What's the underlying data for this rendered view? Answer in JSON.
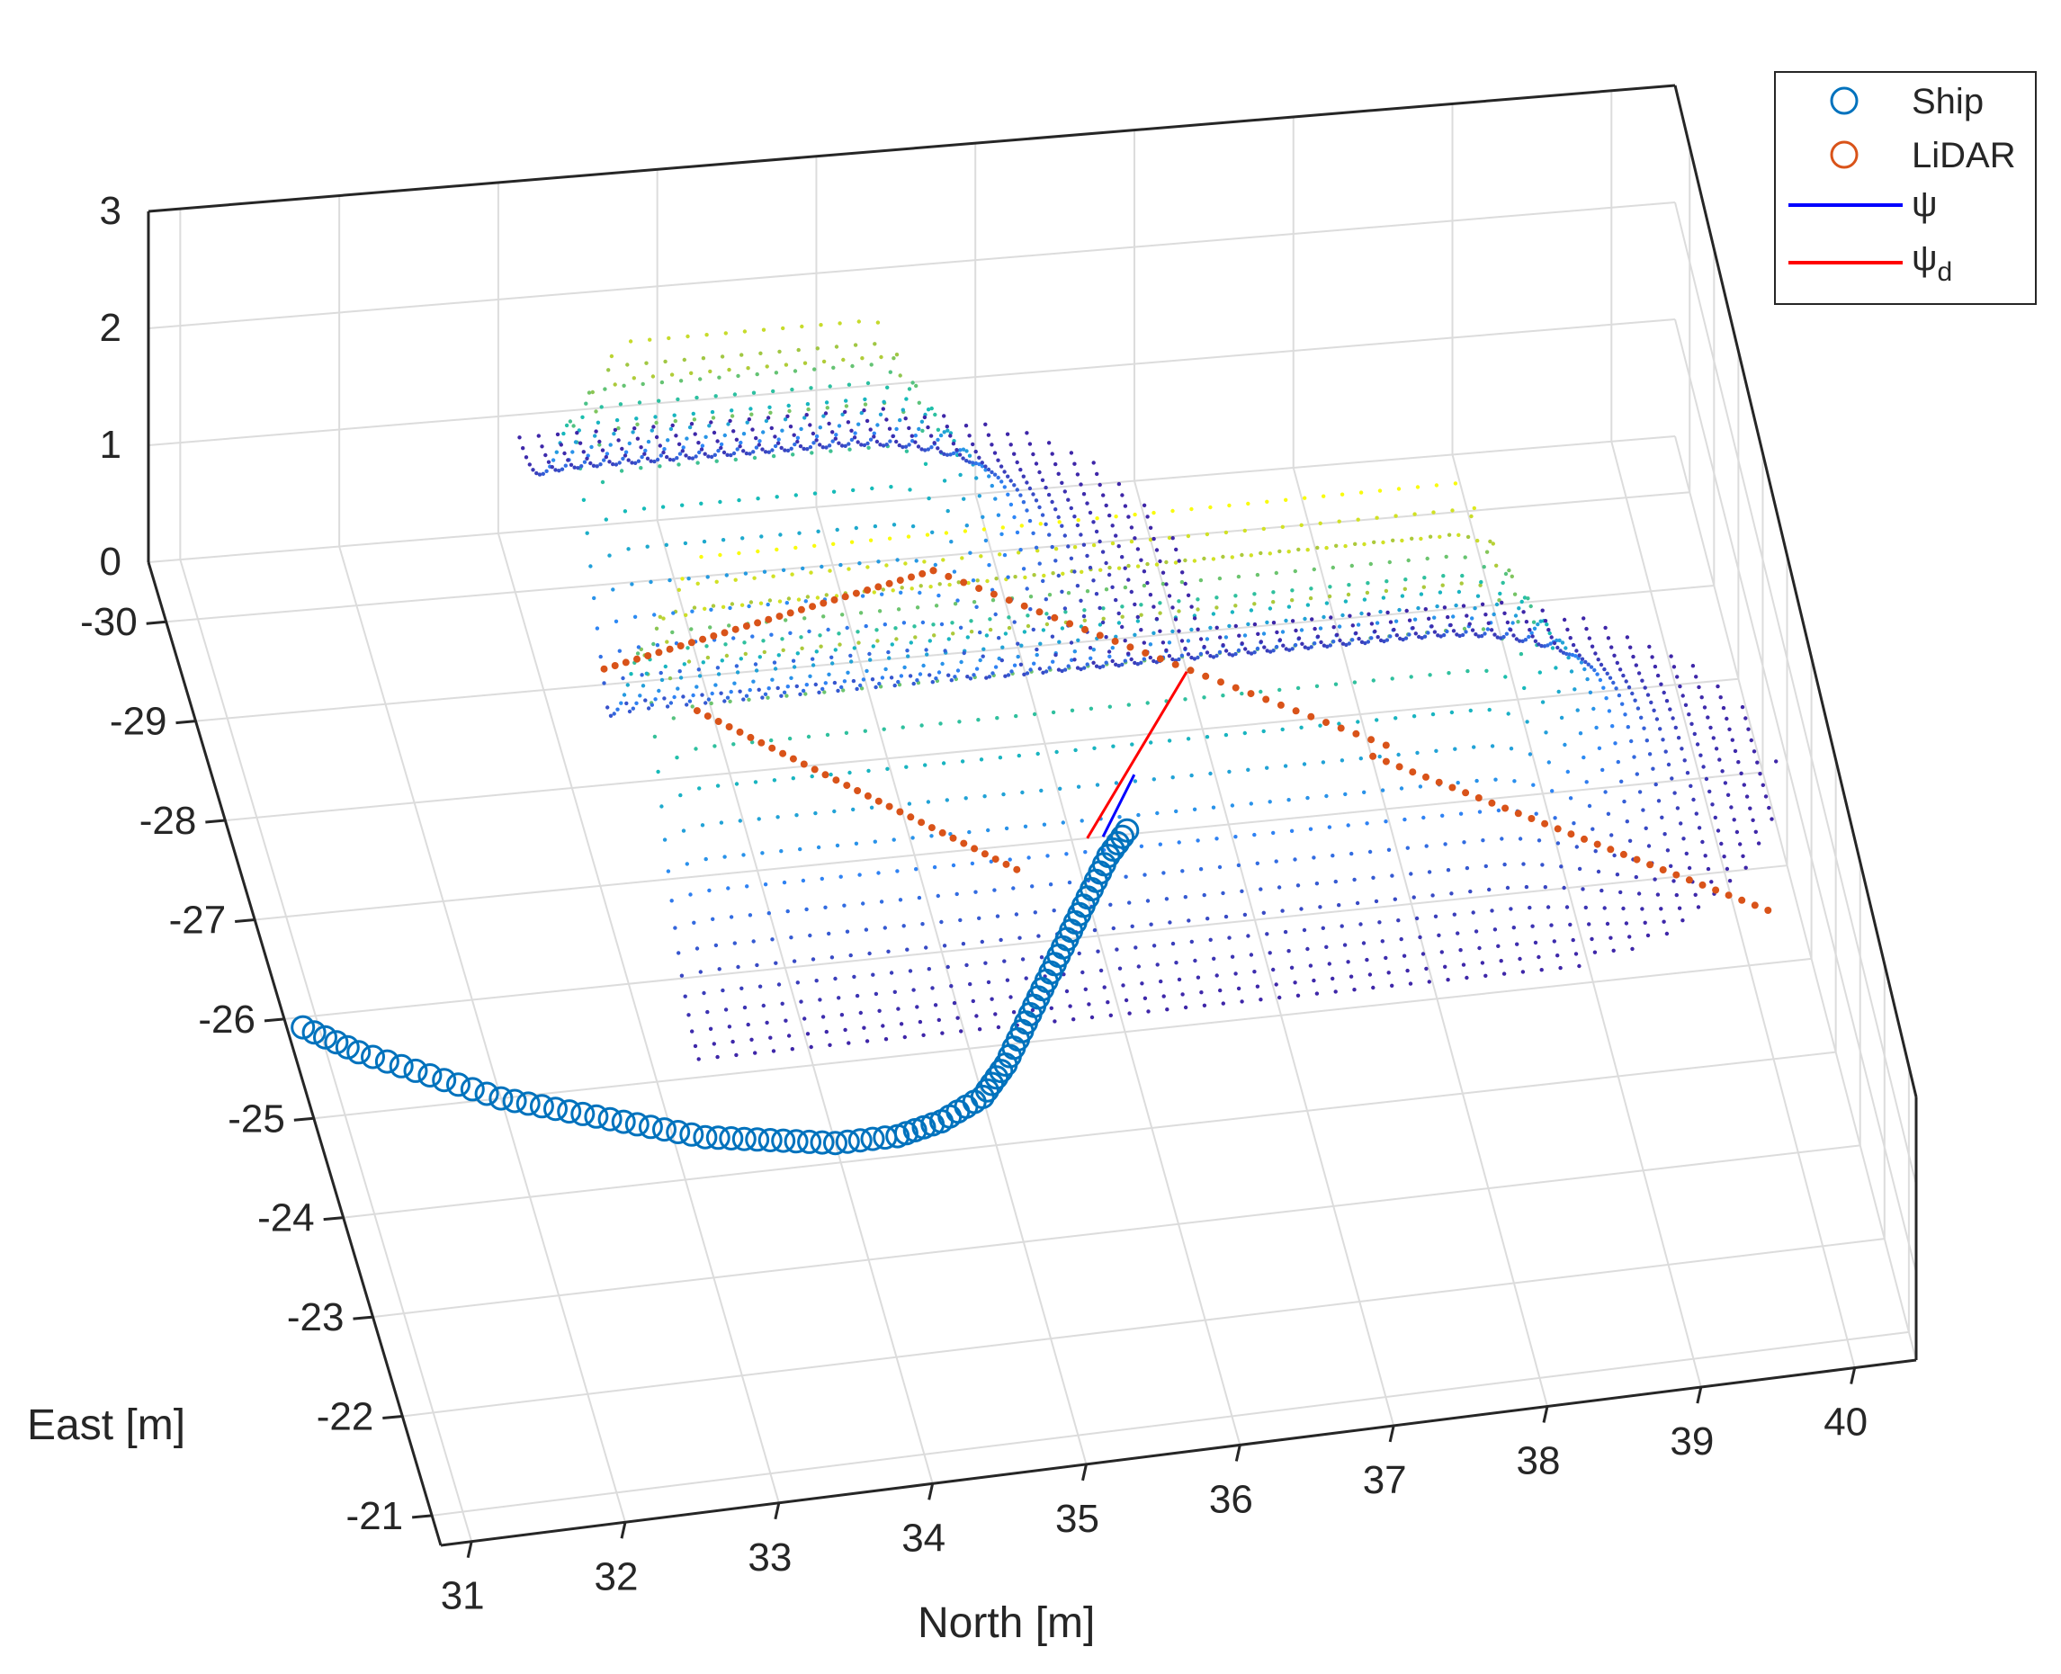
{
  "chart_data": {
    "type": "surface-3d",
    "view": "3d-perspective",
    "grid": true,
    "colormap": "parula",
    "axes": {
      "x": {
        "label": "North [m]",
        "ticks": [
          "31",
          "32",
          "33",
          "34",
          "35",
          "36",
          "37",
          "38",
          "39",
          "40"
        ],
        "range": [
          30.8,
          40.4
        ]
      },
      "y": {
        "label": "East [m]",
        "ticks": [
          "-21",
          "-22",
          "-23",
          "-24",
          "-25",
          "-26",
          "-27",
          "-28",
          "-29",
          "-30"
        ],
        "range": [
          -20.7,
          -30.6
        ]
      },
      "z": {
        "label": "",
        "ticks": [
          "0",
          "1",
          "2",
          "3"
        ],
        "range": [
          0,
          3
        ]
      }
    },
    "legend": {
      "location": "top-right",
      "entries": [
        {
          "label": "Ship",
          "marker": "circle",
          "color": "#0072BD"
        },
        {
          "label": "LiDAR",
          "marker": "circle",
          "color": "#D95319"
        },
        {
          "label": "ψ",
          "line": true,
          "color": "#0000FF"
        },
        {
          "label": "ψ",
          "subscript": "d",
          "line": true,
          "color": "#FF0000"
        }
      ]
    },
    "surface": {
      "description_values": "two parallel ridges of height ~2.5-3 along North direction, joined at far end",
      "ridges": [
        {
          "north_start": 33.6,
          "north_end": 38.5,
          "east_center": -27.1,
          "peak": 2.9
        },
        {
          "north_start": 33.6,
          "north_end": 35.2,
          "east_center": -29.6,
          "peak": 2.5
        }
      ],
      "base_height": 0
    },
    "series": [
      {
        "name": "Ship",
        "type": "scatter-circle",
        "color": "#0072BD",
        "x": [
          30.9,
          31.2,
          31.6,
          32.0,
          32.4,
          32.8,
          33.2,
          33.6,
          34.0,
          34.4,
          34.7,
          35.0,
          35.2,
          35.4,
          35.6,
          35.8,
          36.0,
          36.2,
          36.4
        ],
        "y": [
          -25.9,
          -25.6,
          -25.3,
          -25.0,
          -24.8,
          -24.6,
          -24.4,
          -24.3,
          -24.2,
          -24.2,
          -24.3,
          -24.5,
          -24.8,
          -25.2,
          -25.6,
          -26.0,
          -26.4,
          -26.8,
          -27.1
        ],
        "z": [
          0,
          0,
          0,
          0,
          0,
          0,
          0,
          0,
          0,
          0,
          0,
          0,
          0,
          0,
          0,
          0,
          0,
          0,
          0
        ]
      },
      {
        "name": "LiDAR",
        "type": "scatter-dot",
        "color": "#D95319",
        "segments": [
          {
            "x": [
              33.4,
              35.6
            ],
            "y": [
              -29.1,
              -29.8
            ]
          },
          {
            "x": [
              35.6,
              38.1
            ],
            "y": [
              -29.8,
              -27.6
            ]
          },
          {
            "x": [
              33.9,
              35.6
            ],
            "y": [
              -28.6,
              -26.7
            ]
          },
          {
            "x": [
              38.0,
              40.2
            ],
            "y": [
              -27.5,
              -25.5
            ]
          }
        ]
      },
      {
        "name": "ψ",
        "type": "line",
        "color": "#0000FF",
        "x": [
          36.2,
          36.5
        ],
        "y": [
          -27.0,
          -27.6
        ]
      },
      {
        "name": "ψ_d",
        "type": "line",
        "color": "#FF0000",
        "x": [
          36.1,
          37.0
        ],
        "y": [
          -27.0,
          -28.6
        ]
      }
    ]
  }
}
